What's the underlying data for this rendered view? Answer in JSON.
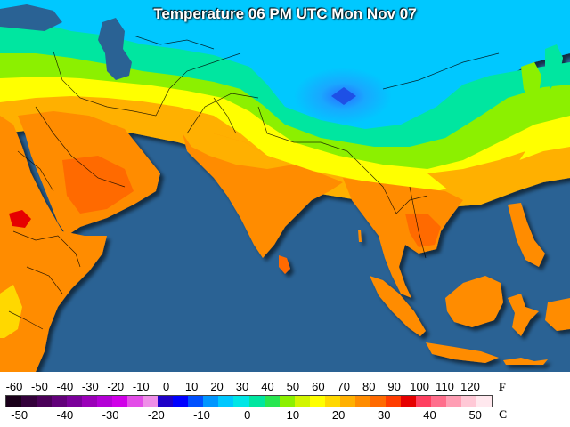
{
  "title": "Temperature 06 PM UTC Mon Nov 07",
  "legend": {
    "fahrenheit_unit": "F",
    "celsius_unit": "C",
    "fahrenheit_ticks": [
      "-60",
      "-50",
      "-40",
      "-30",
      "-20",
      "-10",
      "0",
      "10",
      "20",
      "30",
      "40",
      "50",
      "60",
      "70",
      "80",
      "90",
      "100",
      "110",
      "120"
    ],
    "celsius_ticks": [
      "-50",
      "-40",
      "-30",
      "-20",
      "-10",
      "0",
      "10",
      "20",
      "30",
      "40",
      "50"
    ],
    "colors": [
      "#1a001a",
      "#33003a",
      "#4a0058",
      "#62007a",
      "#7a009a",
      "#9a00b8",
      "#b400d6",
      "#d000e8",
      "#e34de8",
      "#ef8ee8",
      "#1e00c8",
      "#0000ff",
      "#0050ff",
      "#0096ff",
      "#00c8ff",
      "#00e6e6",
      "#00e6a0",
      "#28e650",
      "#8cf000",
      "#d2f500",
      "#ffff00",
      "#ffd800",
      "#ffb000",
      "#ff8c00",
      "#ff6a00",
      "#ff3c00",
      "#e60000",
      "#ff4060",
      "#ff6e8c",
      "#ff9eb4",
      "#ffc8d6",
      "#ffe8ee"
    ]
  }
}
